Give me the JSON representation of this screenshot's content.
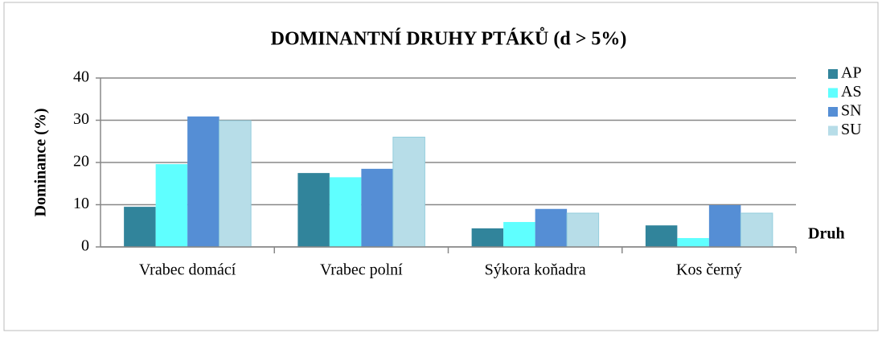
{
  "chart_data": {
    "type": "bar",
    "title": "DOMINANTNÍ DRUHY PTÁKŮ (d > 5%)",
    "y_label": "Dominance (%)",
    "x_label": "Druh",
    "categories": [
      "Vrabec domácí",
      "Vrabec polní",
      "Sýkora koňadra",
      "Kos černý"
    ],
    "series": [
      {
        "name": "AP",
        "color": "#31849b",
        "values": [
          9.5,
          17.5,
          4.4,
          5.1
        ]
      },
      {
        "name": "AS",
        "color": "#5fffff",
        "values": [
          19.6,
          16.5,
          5.9,
          2.1
        ]
      },
      {
        "name": "SN",
        "color": "#558ed5",
        "values": [
          30.9,
          18.5,
          9,
          9.9
        ]
      },
      {
        "name": "SU",
        "color": "#b7dde8",
        "values": [
          29.9,
          26,
          8,
          8
        ]
      }
    ],
    "ylim": [
      0,
      40
    ],
    "yticks": [
      0,
      10,
      20,
      30,
      40
    ],
    "grid": true,
    "legend": "right"
  }
}
